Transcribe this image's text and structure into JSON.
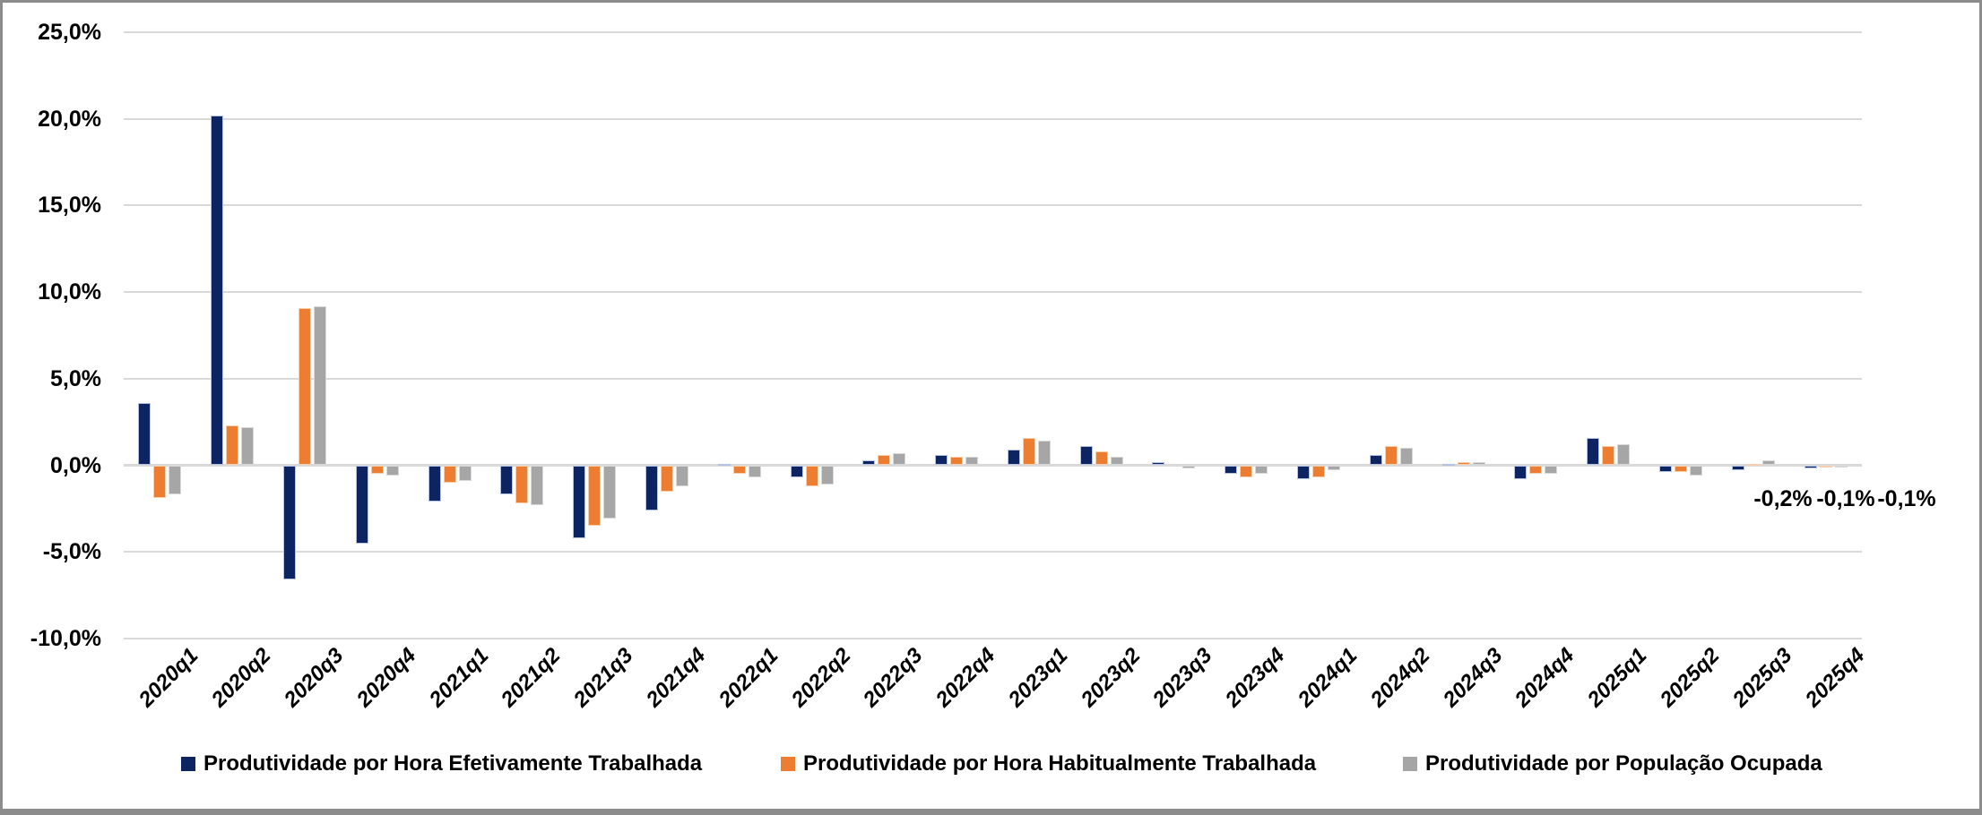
{
  "chart_data": {
    "type": "bar",
    "title": "",
    "xlabel": "",
    "ylabel": "",
    "categories": [
      "2020q1",
      "2020q2",
      "2020q3",
      "2020q4",
      "2021q1",
      "2021q2",
      "2021q3",
      "2021q4",
      "2022q1",
      "2022q2",
      "2022q3",
      "2022q4",
      "2023q1",
      "2023q2",
      "2023q3",
      "2023q4",
      "2024q1",
      "2024q2",
      "2024q3",
      "2024q4",
      "2025q1",
      "2025q2",
      "2025q3",
      "2025q4"
    ],
    "series": [
      {
        "name": "Produtividade por Hora Efetivamente Trabalhada",
        "color": "#0D2463",
        "edge_color": "#B4C2E4",
        "values": [
          3.6,
          20.2,
          -6.6,
          -4.5,
          -2.1,
          -1.7,
          -4.2,
          -2.6,
          0.1,
          -0.7,
          0.3,
          0.6,
          0.9,
          1.1,
          0.2,
          -0.5,
          -0.8,
          0.6,
          0.1,
          -0.8,
          1.6,
          -0.4,
          -0.3,
          -0.2
        ]
      },
      {
        "name": "Produtividade por Hora Habitualmente Trabalhada",
        "color": "#ED7D31",
        "edge_color": "#F7CFAE",
        "values": [
          -1.9,
          2.3,
          9.1,
          -0.5,
          -1.0,
          -2.2,
          -3.5,
          -1.5,
          -0.5,
          -1.2,
          0.6,
          0.5,
          1.6,
          0.8,
          0.0,
          -0.7,
          -0.7,
          1.1,
          0.2,
          -0.5,
          1.1,
          -0.4,
          0.1,
          -0.1
        ]
      },
      {
        "name": "Produtividade por População Ocupada",
        "color": "#A6A6A6",
        "edge_color": "#D8D8D8",
        "values": [
          -1.7,
          2.2,
          9.2,
          -0.6,
          -0.9,
          -2.3,
          -3.1,
          -1.2,
          -0.7,
          -1.1,
          0.7,
          0.5,
          1.4,
          0.5,
          -0.2,
          -0.5,
          -0.3,
          1.0,
          0.2,
          -0.5,
          1.2,
          -0.6,
          0.3,
          -0.1
        ]
      }
    ],
    "y_axis": {
      "min": -10,
      "max": 25,
      "step": 5,
      "tick_labels": [
        "25,0%",
        "20,0%",
        "15,0%",
        "10,0%",
        "5,0%",
        "0,0%",
        "-5,0%",
        "-10,0%"
      ],
      "number_format": "0,0% (comma decimal)"
    },
    "grid": "horizontal",
    "legend_position": "bottom",
    "data_labels": {
      "category": "2025q4",
      "labels": [
        "-0,2%",
        "-0,1%",
        "-0,1%"
      ],
      "centers_x": [
        1986,
        2056,
        2124
      ],
      "top_y": 540
    },
    "colors": {
      "gridline": "#D9D9D9",
      "axis_line": "#D9D9D9",
      "text": "#000000",
      "frame_border": "#8C8C8C",
      "background": "#FFFFFF"
    }
  }
}
